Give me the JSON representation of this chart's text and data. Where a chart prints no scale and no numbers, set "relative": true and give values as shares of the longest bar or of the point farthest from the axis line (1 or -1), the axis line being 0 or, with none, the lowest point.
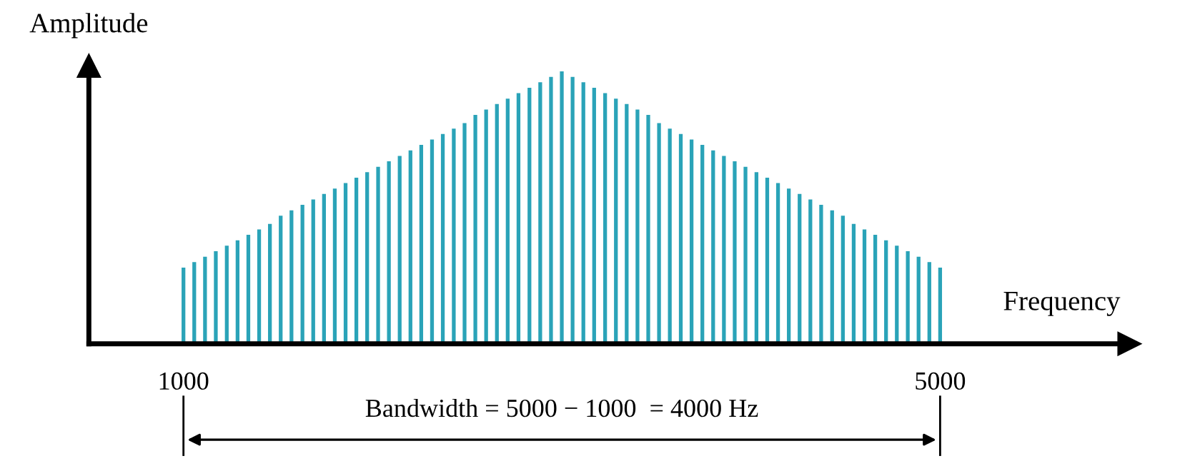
{
  "chart_data": {
    "type": "bar",
    "relative": true,
    "xlabel": "Frequency",
    "ylabel": "Amplitude",
    "annotations": [
      "Bandwidth = 5000 − 1000  = 4000 Hz"
    ],
    "xlim": [
      500,
      6000
    ],
    "xticks": [
      1000,
      5000
    ],
    "grid": false,
    "x": [
      1000,
      1057,
      1114,
      1171,
      1229,
      1286,
      1343,
      1400,
      1457,
      1514,
      1571,
      1629,
      1686,
      1743,
      1800,
      1857,
      1914,
      1971,
      2029,
      2086,
      2143,
      2200,
      2257,
      2314,
      2371,
      2429,
      2486,
      2543,
      2600,
      2657,
      2714,
      2771,
      2829,
      2886,
      2943,
      3000,
      3057,
      3114,
      3171,
      3229,
      3286,
      3343,
      3400,
      3457,
      3514,
      3571,
      3629,
      3686,
      3743,
      3800,
      3857,
      3914,
      3971,
      4029,
      4086,
      4143,
      4200,
      4257,
      4314,
      4371,
      4429,
      4486,
      4543,
      4600,
      4657,
      4714,
      4771,
      4829,
      4886,
      4943,
      5000
    ],
    "series": [
      {
        "color": "#2aa3b8",
        "values": [
          0.28,
          0.3,
          0.32,
          0.34,
          0.36,
          0.38,
          0.4,
          0.42,
          0.44,
          0.47,
          0.49,
          0.51,
          0.53,
          0.55,
          0.57,
          0.59,
          0.61,
          0.63,
          0.65,
          0.67,
          0.69,
          0.71,
          0.73,
          0.75,
          0.77,
          0.79,
          0.81,
          0.84,
          0.86,
          0.88,
          0.9,
          0.92,
          0.94,
          0.96,
          0.98,
          1.0,
          0.98,
          0.96,
          0.94,
          0.92,
          0.9,
          0.88,
          0.86,
          0.84,
          0.81,
          0.79,
          0.77,
          0.75,
          0.73,
          0.71,
          0.69,
          0.67,
          0.65,
          0.63,
          0.61,
          0.59,
          0.57,
          0.55,
          0.53,
          0.51,
          0.49,
          0.47,
          0.44,
          0.42,
          0.4,
          0.38,
          0.36,
          0.34,
          0.32,
          0.3,
          0.28
        ]
      }
    ]
  }
}
